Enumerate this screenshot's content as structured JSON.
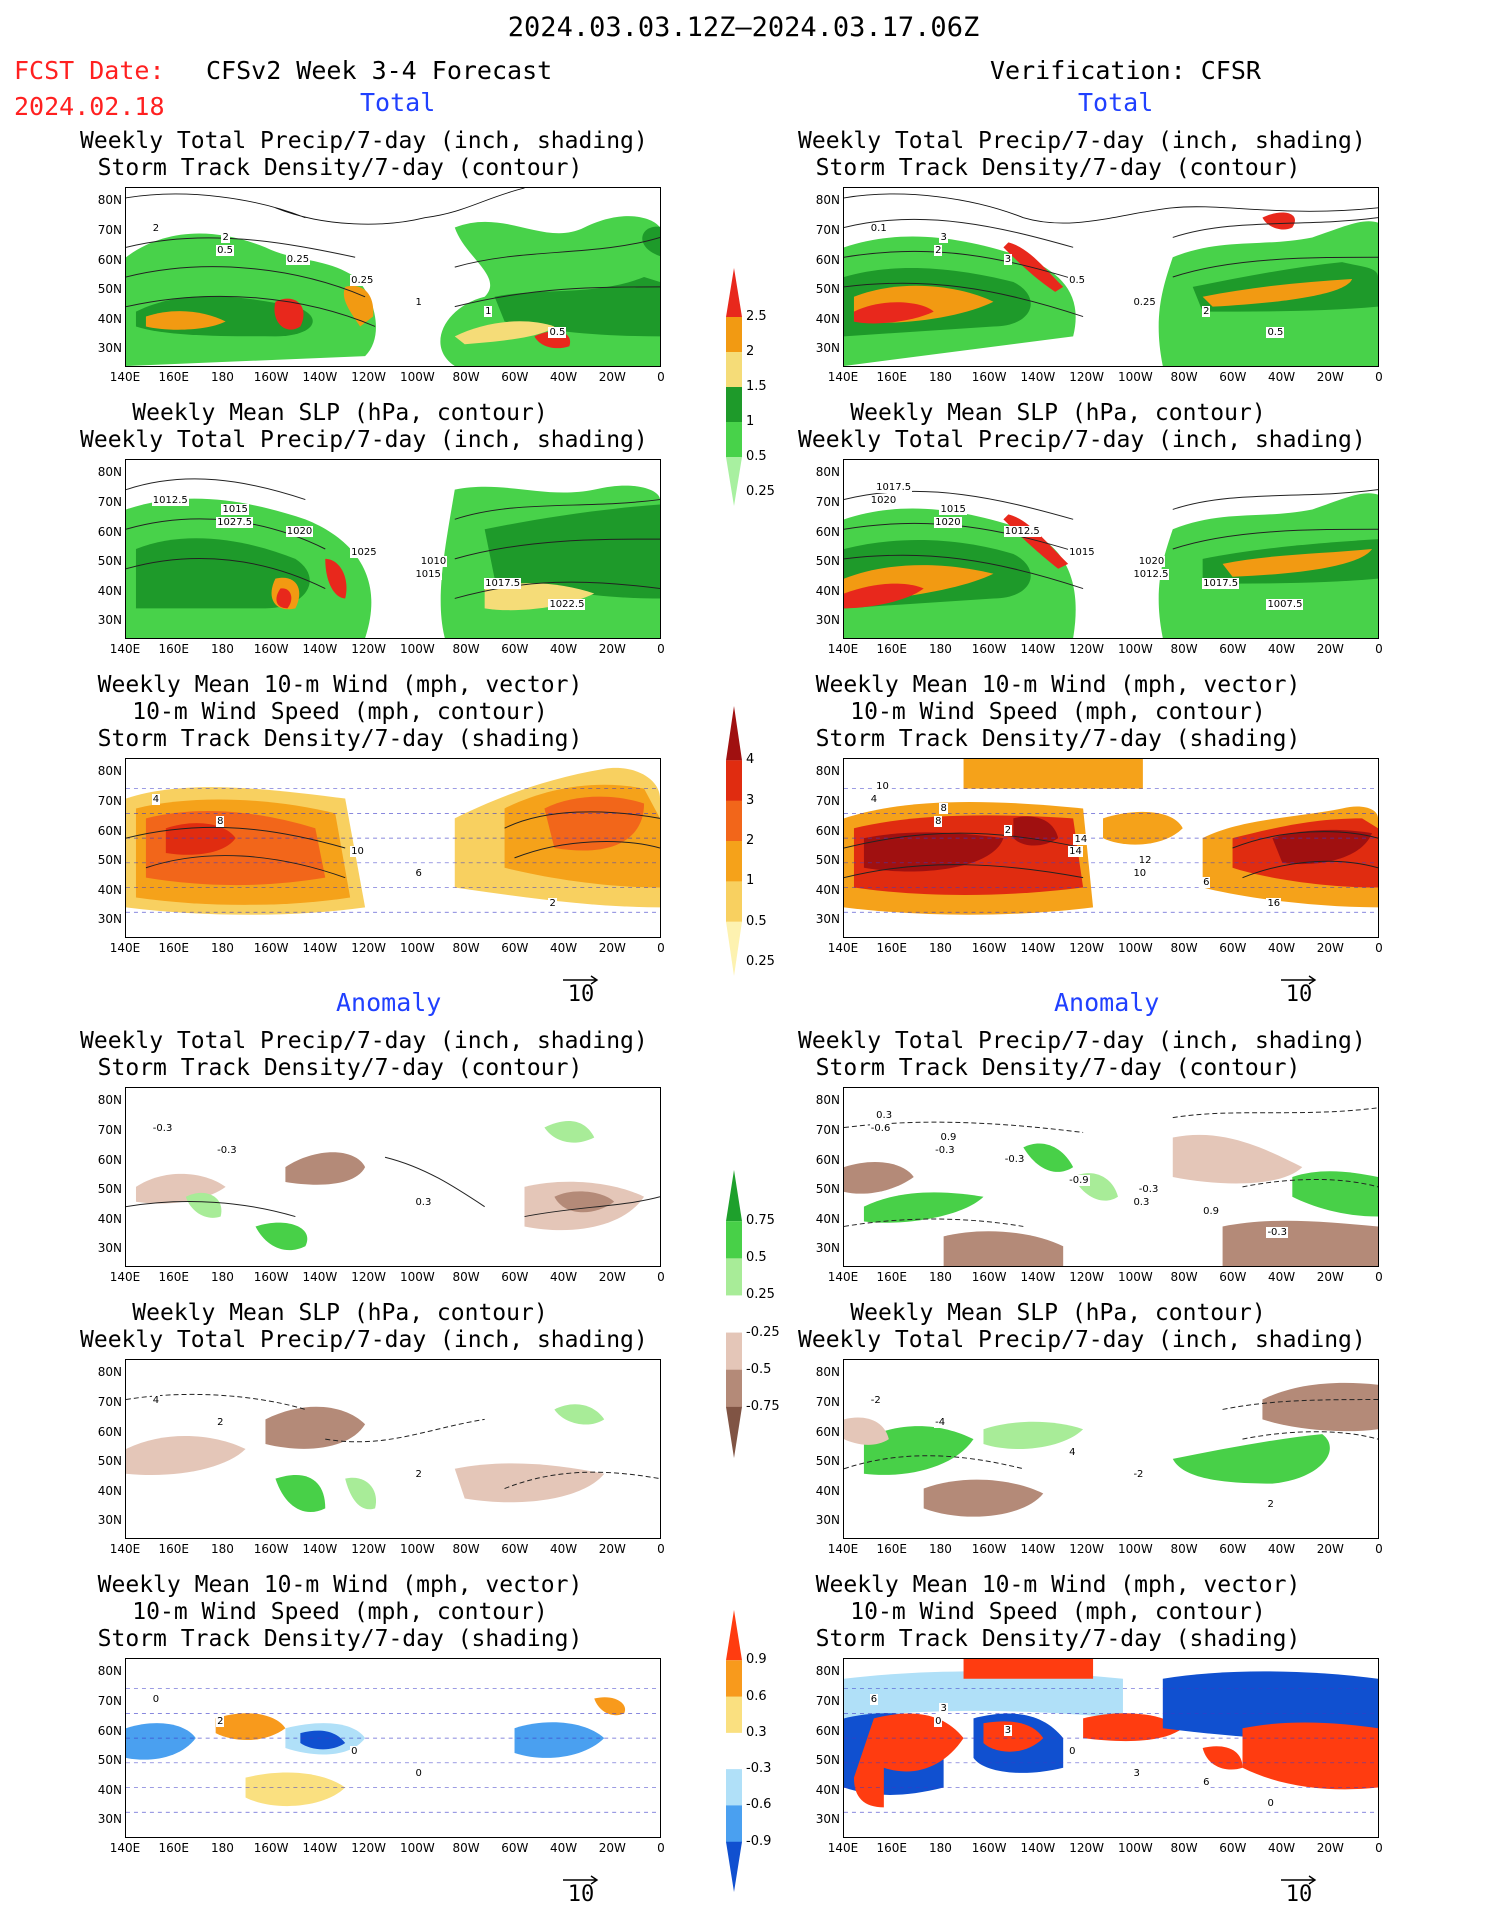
{
  "header": {
    "period": "2024.03.03.12Z—2024.03.17.06Z",
    "fcst_label": "FCST Date:",
    "fcst_date": "2024.02.18",
    "left_title": "CFSv2 Week 3-4 Forecast",
    "right_title": "Verification: CFSR"
  },
  "sections": {
    "total": "Total",
    "anomaly": "Anomaly"
  },
  "panel_titles": {
    "precip_storm": "Weekly Total Precip/7-day (inch, shading)\nStorm Track Density/7-day (contour)",
    "slp_precip": "Weekly Mean SLP (hPa, contour)\nWeekly Total Precip/7-day (inch, shading)",
    "wind": "Weekly Mean 10-m Wind (mph, vector)\n10-m Wind Speed (mph, contour)\nStorm Track Density/7-day (shading)"
  },
  "axes": {
    "lat_labels": [
      "80N",
      "70N",
      "60N",
      "50N",
      "40N",
      "30N"
    ],
    "lon_labels": [
      "140E",
      "160E",
      "180",
      "160W",
      "140W",
      "120W",
      "100W",
      "80W",
      "60W",
      "40W",
      "20W",
      "0"
    ]
  },
  "reference_vector": "10",
  "colorbars": {
    "precip_total": {
      "labels": [
        "2.5",
        "2",
        "1.5",
        "1",
        "0.5",
        "0.25"
      ],
      "colors": [
        "#e8281c",
        "#f29a12",
        "#f5dc78",
        "#1e9a2a",
        "#48d24a",
        "#a8f0a0"
      ]
    },
    "storm_total": {
      "labels": [
        "4",
        "3",
        "2",
        "1",
        "0.5",
        "0.25"
      ],
      "colors": [
        "#a01010",
        "#e02c10",
        "#f2661a",
        "#f5a21a",
        "#f8d060",
        "#fdf2b0"
      ]
    },
    "precip_anom": {
      "labels": [
        "0.75",
        "0.5",
        "0.25",
        "-0.25",
        "-0.5",
        "-0.75"
      ],
      "colors": [
        "#1ea02c",
        "#48d048",
        "#a8ec98",
        "#ffffff",
        "#e4c6b8",
        "#b48a78",
        "#805444"
      ]
    },
    "storm_anom": {
      "labels": [
        "0.9",
        "0.6",
        "0.3",
        "-0.3",
        "-0.6",
        "-0.9"
      ],
      "colors": [
        "#ff3c10",
        "#f89a1c",
        "#fae080",
        "#ffffff",
        "#b0e0f8",
        "#4aa0f0",
        "#1050d0"
      ]
    }
  },
  "contour_labels": {
    "fc_precip": [
      "0.5",
      "1",
      "2",
      "0.25",
      "0.5",
      "0.25",
      "1",
      "2"
    ],
    "vf_precip": [
      "2",
      "0.25",
      "0.1",
      "0.5",
      "0.5",
      "3",
      "2",
      "3"
    ],
    "fc_slp": [
      "1027.5",
      "1015",
      "1012.5",
      "1025",
      "1022.5",
      "1020",
      "1017.5",
      "1015",
      "1010"
    ],
    "vf_slp": [
      "1020",
      "1012.5",
      "1020",
      "1015",
      "1007.5",
      "1012.5",
      "1017.5",
      "1015",
      "1020",
      "1017.5"
    ],
    "fc_wind": [
      "8",
      "6",
      "4",
      "10",
      "2"
    ],
    "vf_wind": [
      "8",
      "10",
      "4",
      "14",
      "16",
      "2",
      "6",
      "8",
      "12",
      "10",
      "14"
    ],
    "fc_precip_anom": [
      "-0.3",
      "0.3",
      "-0.3"
    ],
    "vf_precip_anom": [
      "-0.3",
      "0.3",
      "-0.6",
      "-0.9",
      "-0.3",
      "-0.3",
      "0.9",
      "0.9",
      "-0.3",
      "0.3"
    ],
    "fc_slp_anom": [
      "2",
      "2",
      "4"
    ],
    "vf_slp_anom": [
      "-4",
      "-2",
      "-2",
      "4",
      "2"
    ],
    "fc_wind_anom": [
      "2",
      "0",
      "0",
      "0"
    ],
    "vf_wind_anom": [
      "0",
      "3",
      "6",
      "0",
      "0",
      "3",
      "6",
      "3"
    ]
  }
}
